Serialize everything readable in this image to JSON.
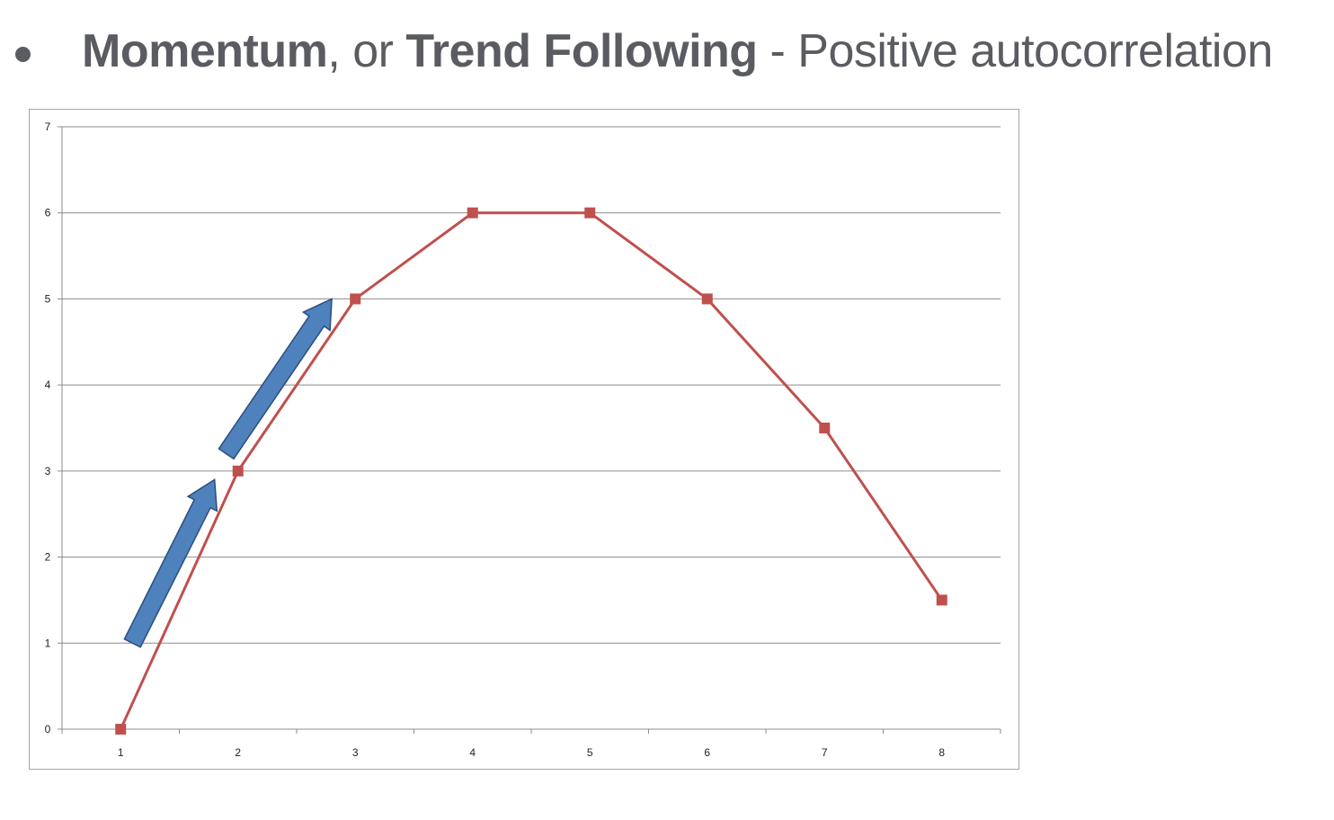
{
  "heading": {
    "term1": "Momentum",
    "sep1": ", or ",
    "term2": "Trend Following",
    "sep2": " - ",
    "description": "Positive autocorrelation"
  },
  "colors": {
    "text": "#5a5c61",
    "series_line": "#c0504d",
    "arrow_fill": "#4f81bd",
    "arrow_stroke": "#2a4e7f",
    "gridline": "#8c8c8c"
  },
  "chart_data": {
    "type": "line",
    "x": [
      1,
      2,
      3,
      4,
      5,
      6,
      7,
      8
    ],
    "categories": [
      "1",
      "2",
      "3",
      "4",
      "5",
      "6",
      "7",
      "8"
    ],
    "series": [
      {
        "values": [
          0,
          3,
          5,
          6,
          6,
          5,
          3.5,
          1.5
        ],
        "color": "#c0504d",
        "marker": "square"
      }
    ],
    "yticks": [
      "0",
      "1",
      "2",
      "3",
      "4",
      "5",
      "6",
      "7"
    ],
    "ylim": [
      0,
      7
    ],
    "grid": true,
    "legend": "none",
    "annotations": [
      {
        "type": "arrow",
        "from": [
          1.1,
          1.0
        ],
        "to": [
          1.8,
          2.9
        ],
        "color": "#4f81bd"
      },
      {
        "type": "arrow",
        "from": [
          1.9,
          3.2
        ],
        "to": [
          2.8,
          5.0
        ],
        "color": "#4f81bd"
      }
    ]
  }
}
